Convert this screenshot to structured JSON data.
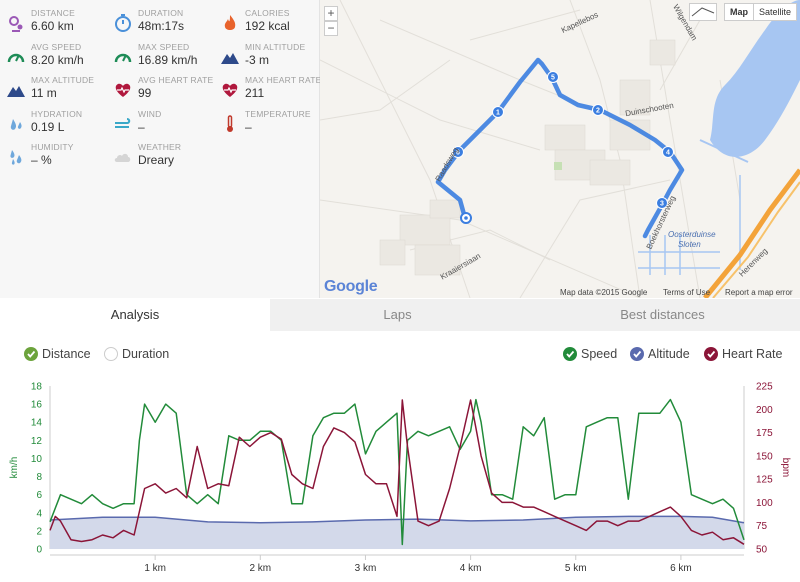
{
  "stats": [
    {
      "label": "DISTANCE",
      "value": "6.60 km",
      "icon": "distance-icon"
    },
    {
      "label": "DURATION",
      "value": "48m:17s",
      "icon": "stopwatch-icon"
    },
    {
      "label": "CALORIES",
      "value": "192 kcal",
      "icon": "flame-icon"
    },
    {
      "label": "AVG SPEED",
      "value": "8.20 km/h",
      "icon": "speedometer-icon"
    },
    {
      "label": "MAX SPEED",
      "value": "16.89 km/h",
      "icon": "speedometer-icon"
    },
    {
      "label": "MIN ALTITUDE",
      "value": "-3 m",
      "icon": "mountain-icon"
    },
    {
      "label": "MAX ALTITUDE",
      "value": "11 m",
      "icon": "mountain-icon"
    },
    {
      "label": "AVG HEART RATE",
      "value": "99",
      "icon": "heart-rate-icon"
    },
    {
      "label": "MAX HEART RATE",
      "value": "211",
      "icon": "heart-rate-icon"
    },
    {
      "label": "HYDRATION",
      "value": "0.19 L",
      "icon": "drops-icon"
    },
    {
      "label": "WIND",
      "value": "–",
      "icon": "wind-icon"
    },
    {
      "label": "TEMPERATURE",
      "value": "–",
      "icon": "thermometer-icon"
    },
    {
      "label": "HUMIDITY",
      "value": "– %",
      "icon": "humidity-icon"
    },
    {
      "label": "WEATHER",
      "value": "Dreary",
      "icon": "cloud-icon"
    }
  ],
  "map": {
    "zoom_in": "+",
    "zoom_out": "−",
    "type_map": "Map",
    "type_satellite": "Satellite",
    "logo": "Google",
    "data_credit": "Map data ©2015 Google",
    "terms": "Terms of Use",
    "report": "Report a map error",
    "streets": [
      "Kapellebos",
      "Wilgendam",
      "Duinschooten",
      "Raadsweg",
      "Kraaiersiaan",
      "Boekhorsterweg",
      "Oosterduinse",
      "Sloten",
      "Herenweg"
    ],
    "km_markers": [
      "1",
      "2",
      "3",
      "4",
      "5",
      "6"
    ]
  },
  "tabs": [
    "Analysis",
    "Laps",
    "Best distances"
  ],
  "legend": {
    "distance": "Distance",
    "duration": "Duration",
    "speed": "Speed",
    "altitude": "Altitude",
    "heart_rate": "Heart Rate"
  },
  "colors": {
    "speed": "#228b3a",
    "altitude": "#5a6aae",
    "heart": "#8b1538",
    "check_green": "#6ca33c"
  },
  "chart_data": {
    "type": "line",
    "x_axis": {
      "ticks": [
        "1 km",
        "2 km",
        "3 km",
        "4 km",
        "5 km",
        "6 km"
      ],
      "range_km": [
        0,
        6.6
      ]
    },
    "y_left": {
      "label": "km/h",
      "range": [
        0,
        18
      ],
      "ticks": [
        0,
        2,
        4,
        6,
        8,
        10,
        12,
        14,
        16,
        18
      ]
    },
    "y_right": {
      "label": "bpm",
      "range": [
        50,
        225
      ],
      "ticks": [
        50,
        75,
        100,
        125,
        150,
        175,
        200,
        225
      ]
    },
    "series": [
      {
        "name": "Speed",
        "axis": "left",
        "x": [
          0,
          0.1,
          0.2,
          0.3,
          0.4,
          0.5,
          0.6,
          0.7,
          0.8,
          0.85,
          0.9,
          1.0,
          1.1,
          1.2,
          1.3,
          1.4,
          1.5,
          1.6,
          1.7,
          1.8,
          1.9,
          2.0,
          2.1,
          2.2,
          2.3,
          2.4,
          2.5,
          2.6,
          2.7,
          2.8,
          2.9,
          3.0,
          3.1,
          3.2,
          3.3,
          3.35,
          3.4,
          3.5,
          3.6,
          3.7,
          3.8,
          3.9,
          4.0,
          4.05,
          4.1,
          4.2,
          4.3,
          4.4,
          4.5,
          4.6,
          4.7,
          4.8,
          4.9,
          5.0,
          5.1,
          5.2,
          5.3,
          5.4,
          5.5,
          5.6,
          5.7,
          5.8,
          5.9,
          6.0,
          6.1,
          6.2,
          6.3,
          6.4,
          6.5,
          6.6
        ],
        "values": [
          3,
          6,
          5.5,
          5,
          6,
          5,
          4.5,
          5,
          5,
          12,
          16,
          14,
          16,
          15,
          6,
          5,
          6,
          5,
          12.5,
          12,
          12,
          13,
          13,
          12,
          5,
          5,
          12.5,
          14.5,
          15,
          15,
          16,
          10.5,
          13,
          14,
          15,
          0.5,
          12,
          13,
          12.5,
          13,
          13.5,
          11,
          13,
          16.5,
          14,
          6,
          6,
          5.5,
          13.5,
          12.5,
          14.5,
          5.5,
          6,
          6,
          13.5,
          14,
          14.5,
          14.5,
          5.5,
          15,
          15,
          15,
          16.5,
          14,
          6,
          5.5,
          5,
          5.5,
          4.5,
          1
        ]
      },
      {
        "name": "Altitude",
        "axis": "left",
        "x": [
          0,
          0.5,
          1.0,
          1.5,
          2.0,
          2.5,
          3.0,
          3.5,
          4.0,
          4.5,
          5.0,
          5.5,
          6.0,
          6.3,
          6.6
        ],
        "values": [
          3.2,
          3.5,
          3.5,
          3.0,
          2.9,
          3.0,
          3.2,
          3.3,
          3.1,
          3.2,
          3.5,
          3.6,
          3.6,
          3.5,
          2.9
        ]
      },
      {
        "name": "Heart Rate",
        "axis": "right",
        "x": [
          0,
          0.05,
          0.1,
          0.2,
          0.3,
          0.4,
          0.5,
          0.6,
          0.7,
          0.8,
          0.9,
          1.0,
          1.1,
          1.2,
          1.3,
          1.4,
          1.5,
          1.6,
          1.7,
          1.8,
          1.9,
          2.0,
          2.1,
          2.2,
          2.3,
          2.4,
          2.5,
          2.6,
          2.7,
          2.8,
          2.9,
          3.0,
          3.1,
          3.2,
          3.3,
          3.35,
          3.4,
          3.5,
          3.6,
          3.7,
          3.8,
          3.9,
          4.0,
          4.05,
          4.1,
          4.2,
          4.3,
          4.4,
          4.5,
          4.6,
          4.7,
          4.8,
          4.9,
          5.0,
          5.1,
          5.2,
          5.3,
          5.4,
          5.5,
          5.6,
          5.7,
          5.8,
          5.9,
          6.0,
          6.1,
          6.2,
          6.3,
          6.4,
          6.5,
          6.6
        ],
        "values": [
          70,
          85,
          80,
          60,
          58,
          60,
          65,
          62,
          70,
          65,
          115,
          120,
          110,
          115,
          105,
          160,
          115,
          120,
          118,
          170,
          160,
          170,
          175,
          168,
          130,
          120,
          115,
          160,
          180,
          175,
          165,
          130,
          120,
          120,
          85,
          210,
          160,
          80,
          75,
          80,
          115,
          160,
          210,
          180,
          150,
          110,
          100,
          100,
          95,
          95,
          90,
          85,
          80,
          75,
          70,
          80,
          80,
          75,
          80,
          80,
          85,
          90,
          95,
          85,
          70,
          65,
          68,
          60,
          62,
          55
        ]
      }
    ]
  }
}
